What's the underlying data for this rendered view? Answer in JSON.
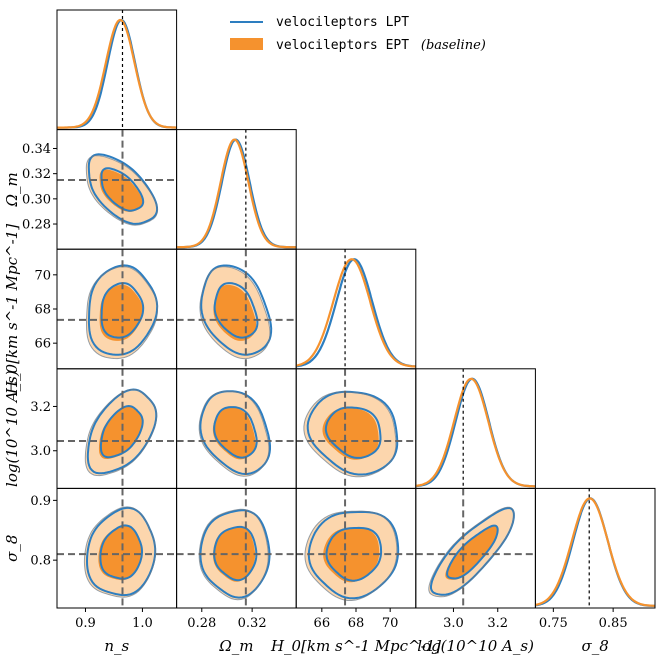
{
  "chart_data": {
    "type": "corner",
    "parameters": [
      {
        "label": "n_s",
        "range": [
          0.85,
          1.06
        ],
        "ticks": [
          "0.9",
          "1.0"
        ],
        "tick_values": [
          0.9,
          1.0
        ],
        "truth": 0.965
      },
      {
        "label": "Ω_m",
        "range": [
          0.26,
          0.355
        ],
        "ticks": [
          "0.28",
          "0.32"
        ],
        "tick_values": [
          0.28,
          0.32
        ],
        "truth": 0.315
      },
      {
        "label": "H_0[km s^-1 Mpc^-1]",
        "range": [
          64.5,
          71.5
        ],
        "ticks": [
          "66",
          "68",
          "70"
        ],
        "tick_values": [
          66,
          68,
          70
        ],
        "truth": 67.36
      },
      {
        "label": "log(10^10 A_s)",
        "range": [
          2.83,
          3.37
        ],
        "ticks": [
          "3.0",
          "3.2"
        ],
        "tick_values": [
          3.0,
          3.2
        ],
        "truth": 3.044
      },
      {
        "label": "σ_8",
        "range": [
          0.72,
          0.92
        ],
        "ticks": [
          "0.75",
          "0.85"
        ],
        "tick_values": [
          0.75,
          0.85
        ],
        "truth": 0.81
      }
    ],
    "y_axis_ticks": [
      {
        "row": 1,
        "ticks": [
          "0.34",
          "0.32",
          "0.30",
          "0.28"
        ],
        "tick_values": [
          0.34,
          0.32,
          0.3,
          0.28
        ]
      },
      {
        "row": 2,
        "ticks": [
          "70",
          "68",
          "66"
        ],
        "tick_values": [
          70,
          68,
          66
        ]
      },
      {
        "row": 3,
        "ticks": [
          "3.2",
          "3.0"
        ],
        "tick_values": [
          3.2,
          3.0
        ]
      },
      {
        "row": 4,
        "ticks": [
          "0.9",
          "0.8"
        ],
        "tick_values": [
          0.9,
          0.8
        ]
      }
    ],
    "series": [
      {
        "name": "velocileptors LPT",
        "suffix": "",
        "color": "#2d7ec0",
        "style": "line",
        "means": [
          0.963,
          0.307,
          67.9,
          3.085,
          0.812
        ],
        "sigmas": [
          0.024,
          0.011,
          1.05,
          0.075,
          0.029
        ]
      },
      {
        "name": "velocileptors EPT",
        "suffix": "(baseline)",
        "color": "#f5922e",
        "fill_light": "#fcd6ad",
        "style": "filled",
        "means": [
          0.961,
          0.306,
          67.75,
          3.08,
          0.811
        ],
        "sigmas": [
          0.025,
          0.011,
          1.08,
          0.077,
          0.03
        ]
      }
    ],
    "correlations": [
      {
        "pair": [
          0,
          1
        ],
        "rho": -0.55
      },
      {
        "pair": [
          0,
          2
        ],
        "rho": 0.1
      },
      {
        "pair": [
          0,
          3
        ],
        "rho": 0.45
      },
      {
        "pair": [
          0,
          4
        ],
        "rho": 0.1
      },
      {
        "pair": [
          1,
          2
        ],
        "rho": -0.3
      },
      {
        "pair": [
          1,
          3
        ],
        "rho": -0.25
      },
      {
        "pair": [
          1,
          4
        ],
        "rho": 0.0
      },
      {
        "pair": [
          2,
          3
        ],
        "rho": -0.15
      },
      {
        "pair": [
          2,
          4
        ],
        "rho": 0.05
      },
      {
        "pair": [
          3,
          4
        ],
        "rho": 0.82
      }
    ]
  }
}
